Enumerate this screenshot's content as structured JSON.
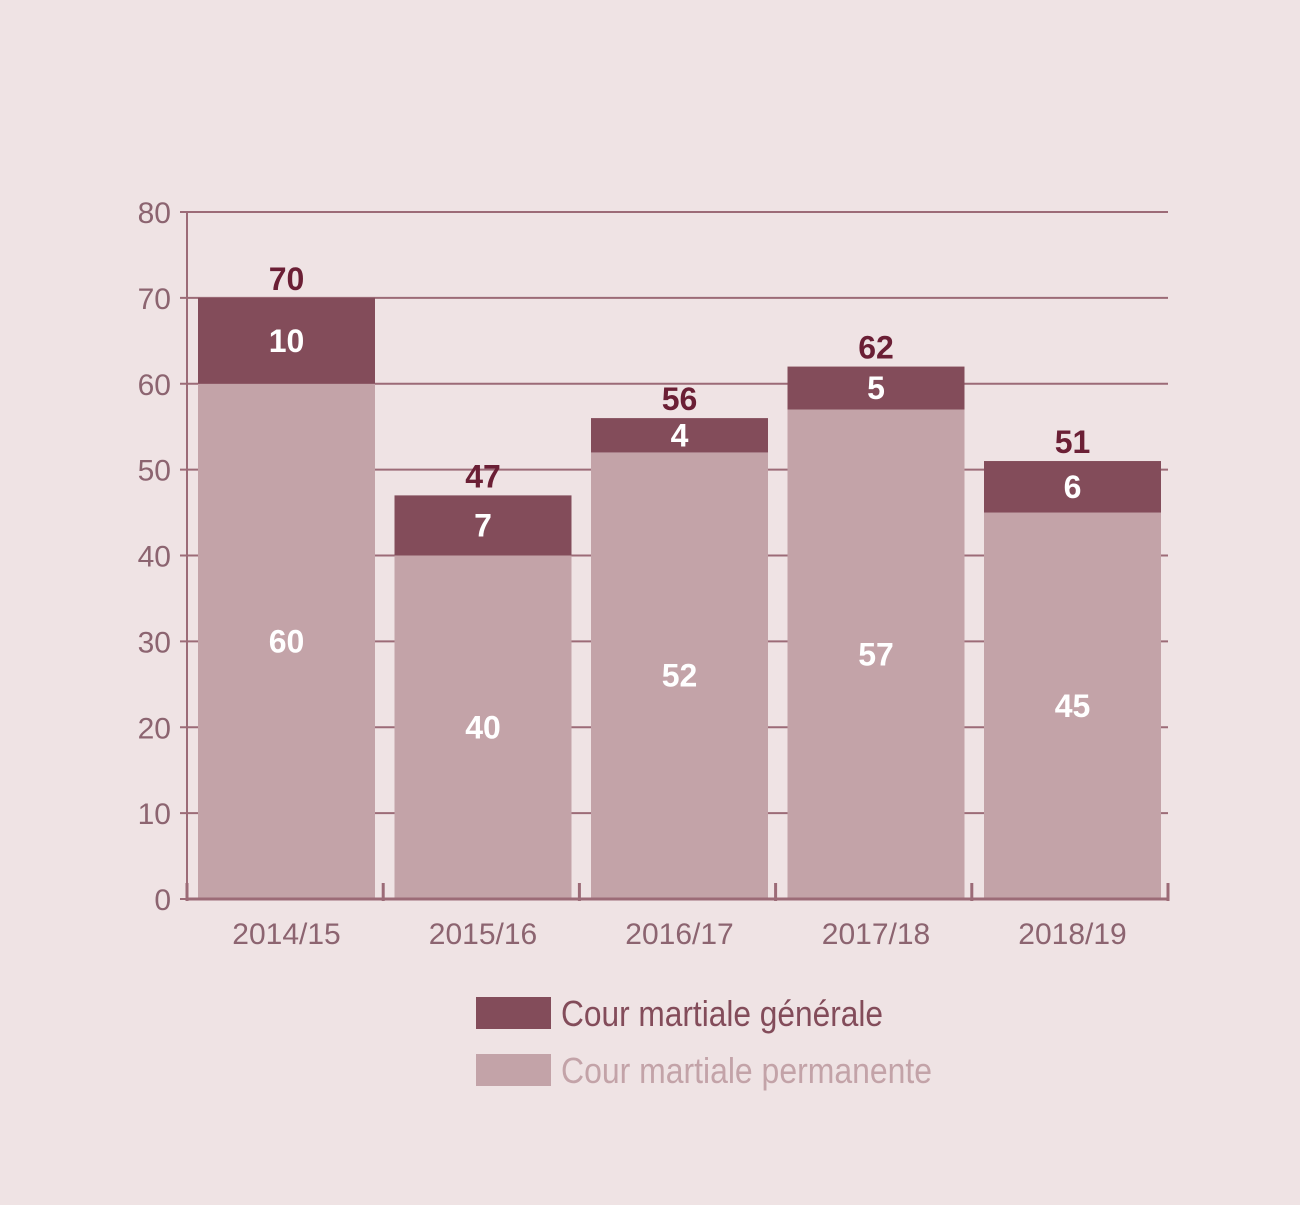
{
  "colors": {
    "background": "#efe3e4",
    "general": "#834c5a",
    "permanent": "#c3a3a8",
    "axis": "#9c6b77",
    "total_label": "#6b1f35",
    "tick_text": "#8c6470",
    "legend_general_text": "#834c5a",
    "legend_permanent_text": "#c3a3a8"
  },
  "chart_data": {
    "type": "bar",
    "stacked": true,
    "categories": [
      "2014/15",
      "2015/16",
      "2016/17",
      "2017/18",
      "2018/19"
    ],
    "series": [
      {
        "name": "Cour martiale permanente",
        "values": [
          60,
          40,
          52,
          57,
          45
        ]
      },
      {
        "name": "Cour martiale générale",
        "values": [
          10,
          7,
          4,
          5,
          6
        ]
      }
    ],
    "totals": [
      70,
      47,
      56,
      62,
      51
    ],
    "ylim": [
      0,
      80
    ],
    "yticks": [
      0,
      10,
      20,
      30,
      40,
      50,
      60,
      70,
      80
    ],
    "grid": true,
    "legend": {
      "placement": "bottom",
      "items": [
        "Cour martiale générale",
        "Cour martiale permanente"
      ]
    },
    "title": "",
    "xlabel": "",
    "ylabel": ""
  }
}
